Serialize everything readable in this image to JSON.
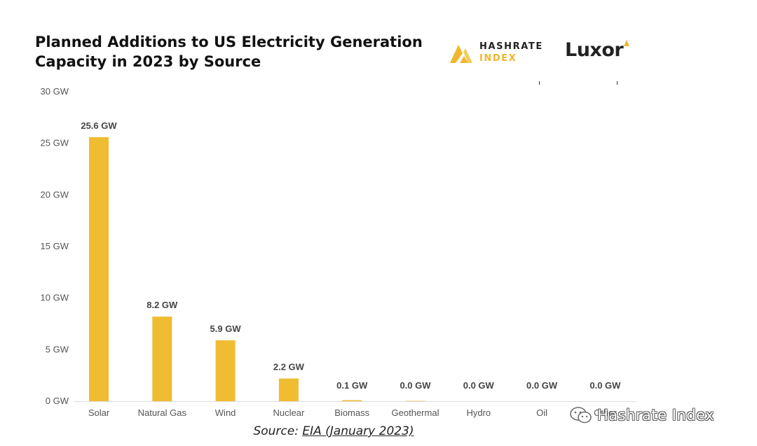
{
  "chart_data": {
    "type": "bar",
    "title": "Planned Additions to US Electricity Generation Capacity in 2023 by Source",
    "categories": [
      "Solar",
      "Natural Gas",
      "Wind",
      "Nuclear",
      "Biomass",
      "Geothermal",
      "Hydro",
      "Oil",
      "Other"
    ],
    "values": [
      25.6,
      8.2,
      5.9,
      2.2,
      0.1,
      0.03,
      0.0,
      0.0,
      0.0
    ],
    "data_labels": [
      "25.6 GW",
      "8.2 GW",
      "5.9 GW",
      "2.2 GW",
      "0.1 GW",
      "0.0 GW",
      "0.0 GW",
      "0.0 GW",
      "0.0 GW"
    ],
    "yticks": [
      0,
      5,
      10,
      15,
      20,
      25,
      30
    ],
    "ytick_labels": [
      "0 GW",
      "5 GW",
      "10 GW",
      "15 GW",
      "20 GW",
      "25 GW",
      "30 GW"
    ],
    "ylim": [
      0,
      30
    ],
    "xlabel": "",
    "ylabel": "",
    "grid": false,
    "bar_color": "#f0bc32"
  },
  "logos": {
    "hashrate_line1": "HASHRATE",
    "hashrate_line2": "INDEX",
    "luxor": "Luxor"
  },
  "source": {
    "prefix": "Source: ",
    "link_text": "EIA (January 2023)"
  },
  "watermark": {
    "text": "Hashrate Index",
    "icon": "wechat-icon"
  },
  "colors": {
    "accent": "#f0bc32",
    "text": "#222222",
    "axis_text": "#555555"
  }
}
